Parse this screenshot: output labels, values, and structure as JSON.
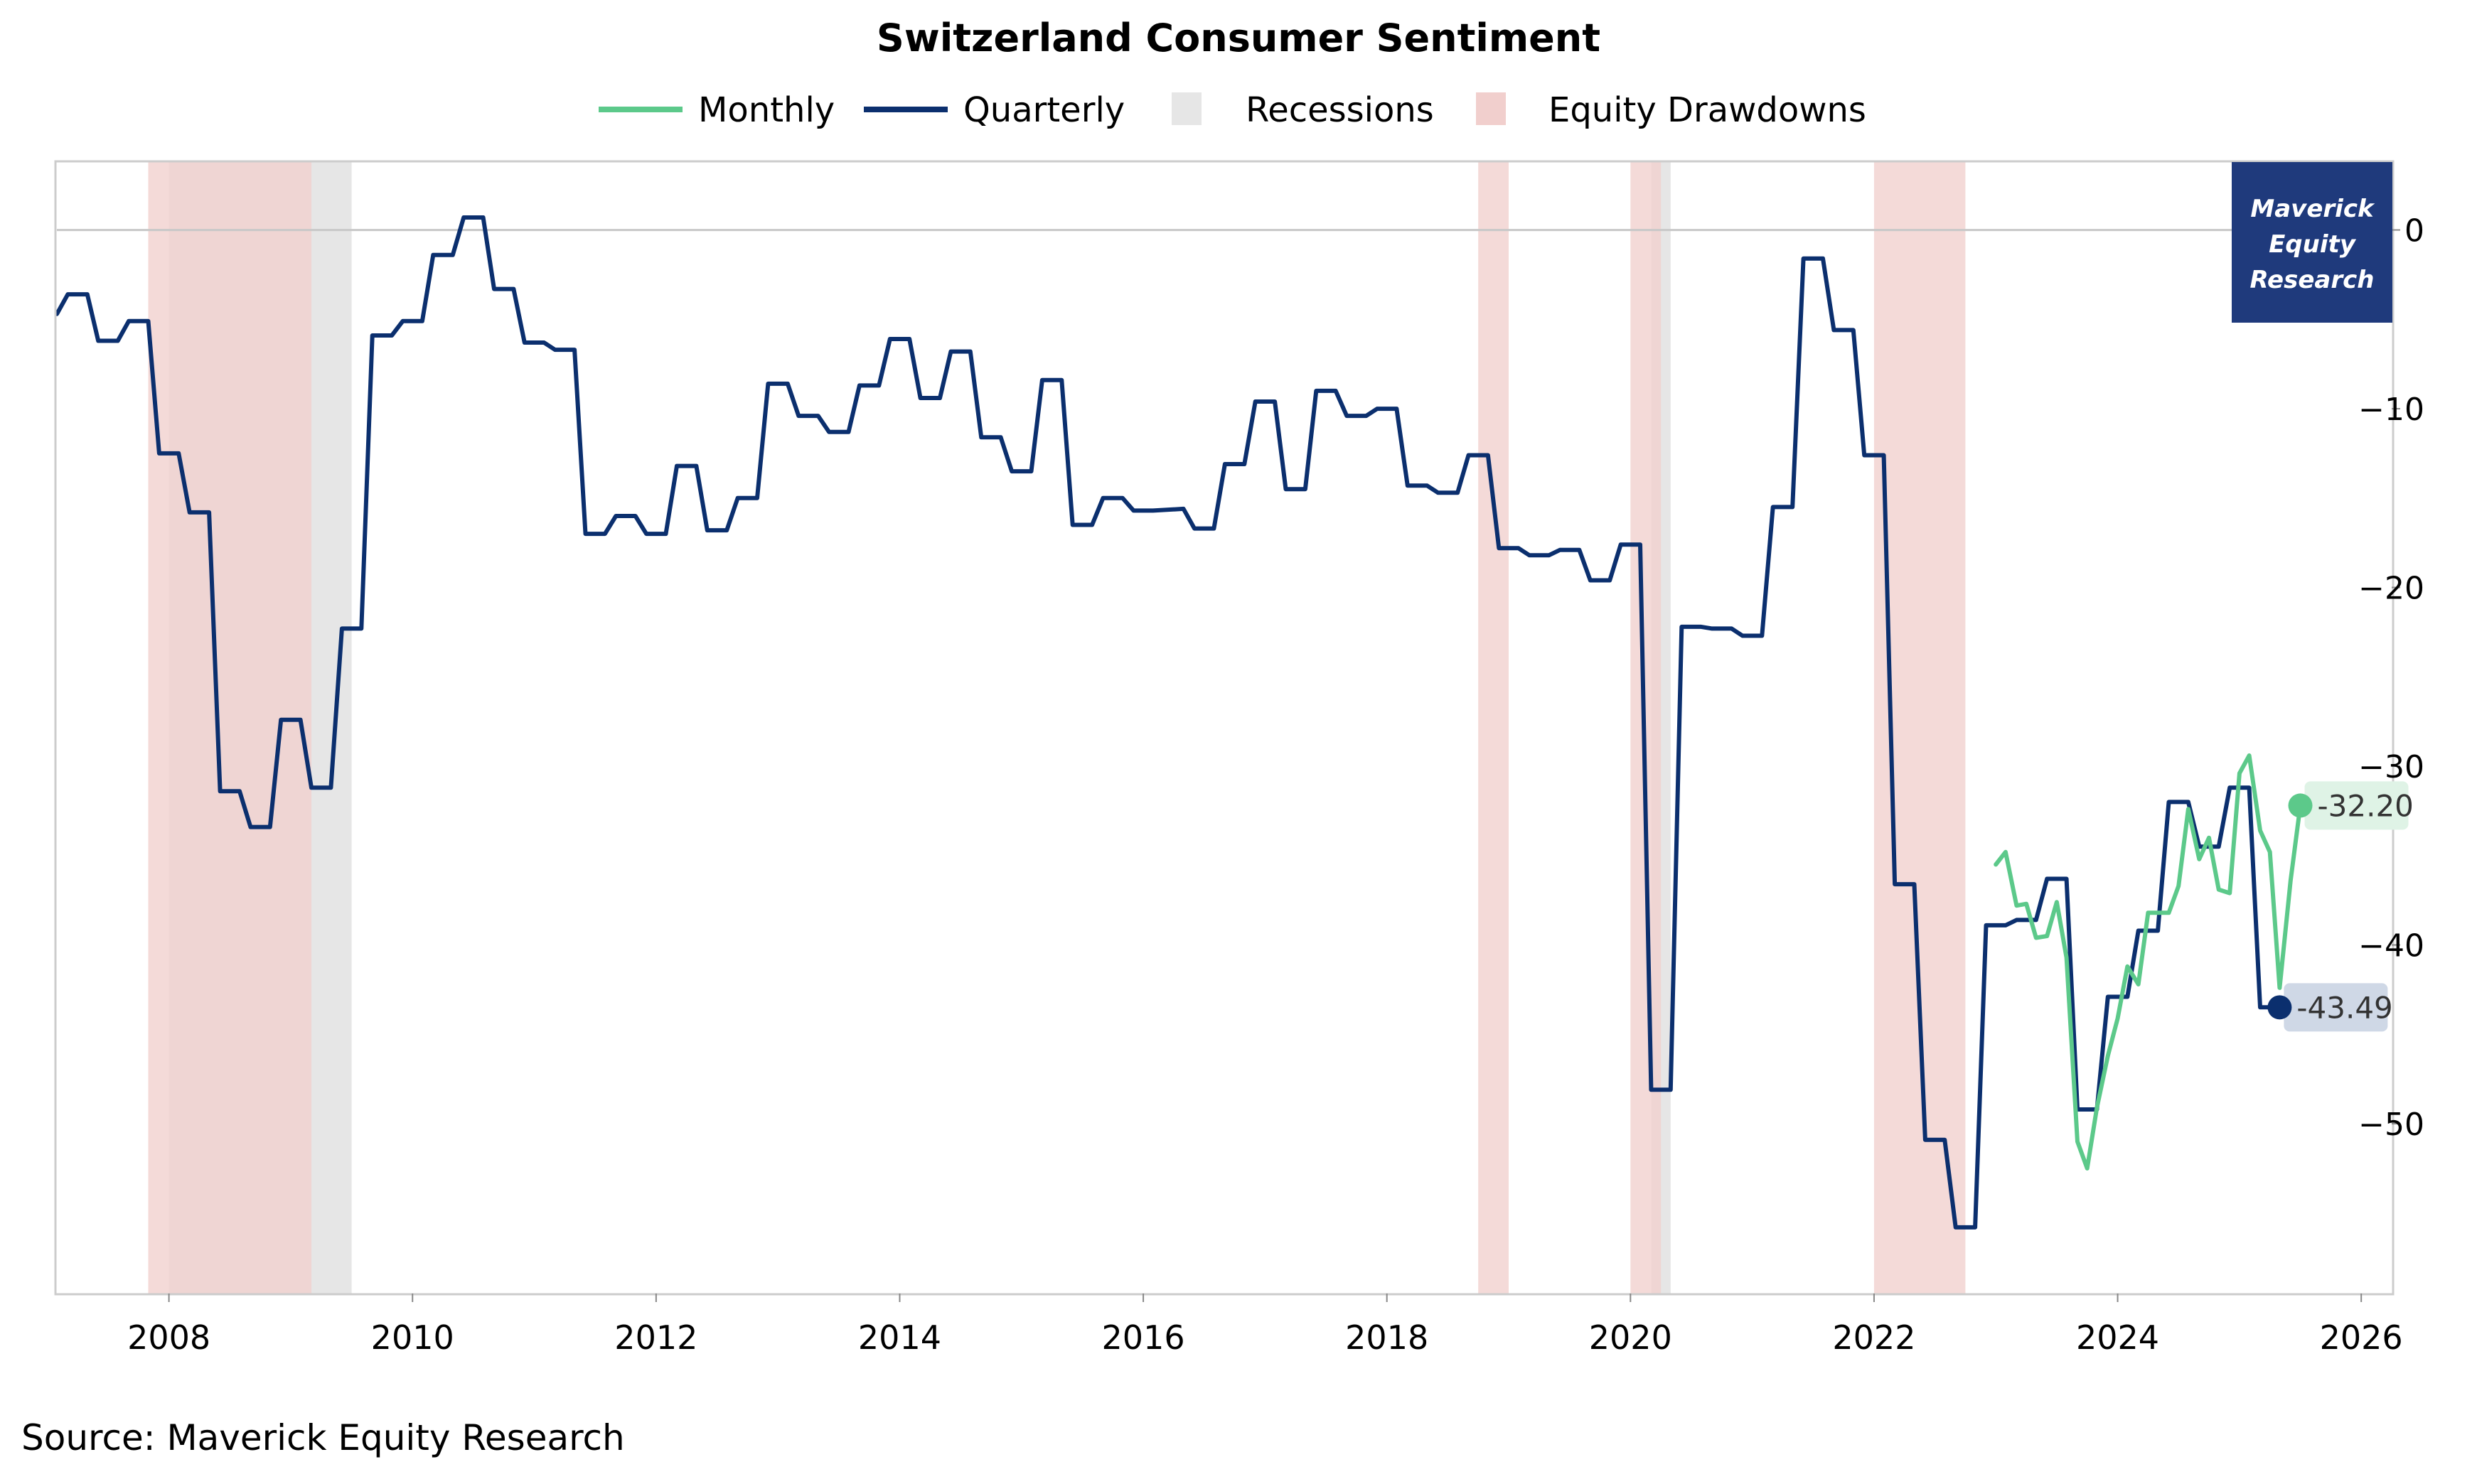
{
  "chart_data": {
    "type": "line",
    "title": "Switzerland Consumer Sentiment",
    "source": "Source: Maverick Equity Research",
    "watermark": "Maverick Equity Research",
    "watermark_lines": [
      "Maverick",
      "Equity",
      "Research"
    ],
    "xlabel": "",
    "ylabel": "",
    "xlim": [
      2007.08,
      2026.25
    ],
    "ylim": [
      -59.5,
      3.8
    ],
    "x_ticks": [
      2008,
      2010,
      2012,
      2014,
      2016,
      2018,
      2020,
      2022,
      2024,
      2026
    ],
    "x_tick_labels": [
      "2008",
      "2010",
      "2012",
      "2014",
      "2016",
      "2018",
      "2020",
      "2022",
      "2024",
      "2026"
    ],
    "y_ticks": [
      0,
      -10,
      -20,
      -30,
      -40,
      -50
    ],
    "y_tick_labels": [
      "0",
      "−10",
      "−20",
      "−30",
      "−40",
      "−50"
    ],
    "y_axis_side": "right",
    "reference_line_y": 0,
    "grid": false,
    "legend_position": "top-center",
    "legend": [
      {
        "label": "Monthly",
        "kind": "line",
        "color": "#5cc98a"
      },
      {
        "label": "Quarterly",
        "kind": "line",
        "color": "#0b2f6e"
      },
      {
        "label": "Recessions",
        "kind": "patch",
        "color": "#e6e6e6"
      },
      {
        "label": "Equity Drawdowns",
        "kind": "patch",
        "color": "#f1cfcd"
      }
    ],
    "recessions": [
      [
        2008.0,
        2009.5
      ],
      [
        2020.17,
        2020.33
      ]
    ],
    "equity_drawdowns": [
      [
        2007.83,
        2009.17
      ],
      [
        2018.75,
        2019.0
      ],
      [
        2020.0,
        2020.25
      ],
      [
        2022.0,
        2022.75
      ]
    ],
    "series": [
      {
        "name": "Quarterly",
        "color": "#0b2f6e",
        "last_value_label": "-43.49",
        "points": [
          [
            2007.08,
            -4.7
          ],
          [
            2007.17,
            -3.6
          ],
          [
            2007.33,
            -3.6
          ],
          [
            2007.42,
            -6.2
          ],
          [
            2007.58,
            -6.2
          ],
          [
            2007.67,
            -5.1
          ],
          [
            2007.83,
            -5.1
          ],
          [
            2007.92,
            -12.5
          ],
          [
            2008.08,
            -12.5
          ],
          [
            2008.17,
            -15.8
          ],
          [
            2008.33,
            -15.8
          ],
          [
            2008.42,
            -31.4
          ],
          [
            2008.58,
            -31.4
          ],
          [
            2008.67,
            -33.4
          ],
          [
            2008.83,
            -33.4
          ],
          [
            2008.92,
            -27.4
          ],
          [
            2009.08,
            -27.4
          ],
          [
            2009.17,
            -31.2
          ],
          [
            2009.33,
            -31.2
          ],
          [
            2009.42,
            -22.3
          ],
          [
            2009.58,
            -22.3
          ],
          [
            2009.67,
            -5.9
          ],
          [
            2009.83,
            -5.9
          ],
          [
            2009.92,
            -5.1
          ],
          [
            2010.08,
            -5.1
          ],
          [
            2010.17,
            -1.4
          ],
          [
            2010.33,
            -1.4
          ],
          [
            2010.42,
            0.7
          ],
          [
            2010.58,
            0.7
          ],
          [
            2010.67,
            -3.3
          ],
          [
            2010.83,
            -3.3
          ],
          [
            2010.92,
            -6.3
          ],
          [
            2011.08,
            -6.3
          ],
          [
            2011.17,
            -6.7
          ],
          [
            2011.33,
            -6.7
          ],
          [
            2011.42,
            -17.0
          ],
          [
            2011.58,
            -17.0
          ],
          [
            2011.67,
            -16.0
          ],
          [
            2011.83,
            -16.0
          ],
          [
            2011.92,
            -17.0
          ],
          [
            2012.08,
            -17.0
          ],
          [
            2012.17,
            -13.2
          ],
          [
            2012.33,
            -13.2
          ],
          [
            2012.42,
            -16.8
          ],
          [
            2012.58,
            -16.8
          ],
          [
            2012.67,
            -15.0
          ],
          [
            2012.83,
            -15.0
          ],
          [
            2012.92,
            -8.6
          ],
          [
            2013.08,
            -8.6
          ],
          [
            2013.17,
            -10.4
          ],
          [
            2013.33,
            -10.4
          ],
          [
            2013.42,
            -11.3
          ],
          [
            2013.58,
            -11.3
          ],
          [
            2013.67,
            -8.7
          ],
          [
            2013.83,
            -8.7
          ],
          [
            2013.92,
            -6.1
          ],
          [
            2014.08,
            -6.1
          ],
          [
            2014.17,
            -9.4
          ],
          [
            2014.33,
            -9.4
          ],
          [
            2014.42,
            -6.8
          ],
          [
            2014.58,
            -6.8
          ],
          [
            2014.67,
            -11.6
          ],
          [
            2014.83,
            -11.6
          ],
          [
            2014.92,
            -13.5
          ],
          [
            2015.08,
            -13.5
          ],
          [
            2015.17,
            -8.4
          ],
          [
            2015.33,
            -8.4
          ],
          [
            2015.42,
            -16.5
          ],
          [
            2015.58,
            -16.5
          ],
          [
            2015.67,
            -15.0
          ],
          [
            2015.83,
            -15.0
          ],
          [
            2015.92,
            -15.7
          ],
          [
            2016.08,
            -15.7
          ],
          [
            2016.33,
            -15.6
          ],
          [
            2016.42,
            -16.7
          ],
          [
            2016.58,
            -16.7
          ],
          [
            2016.67,
            -13.1
          ],
          [
            2016.83,
            -13.1
          ],
          [
            2016.92,
            -9.6
          ],
          [
            2017.08,
            -9.6
          ],
          [
            2017.17,
            -14.5
          ],
          [
            2017.33,
            -14.5
          ],
          [
            2017.42,
            -9.0
          ],
          [
            2017.58,
            -9.0
          ],
          [
            2017.67,
            -10.4
          ],
          [
            2017.83,
            -10.4
          ],
          [
            2017.92,
            -10.0
          ],
          [
            2018.08,
            -10.0
          ],
          [
            2018.17,
            -14.3
          ],
          [
            2018.33,
            -14.3
          ],
          [
            2018.42,
            -14.7
          ],
          [
            2018.58,
            -14.7
          ],
          [
            2018.67,
            -12.6
          ],
          [
            2018.83,
            -12.6
          ],
          [
            2018.92,
            -17.8
          ],
          [
            2019.08,
            -17.8
          ],
          [
            2019.17,
            -18.2
          ],
          [
            2019.33,
            -18.2
          ],
          [
            2019.42,
            -17.9
          ],
          [
            2019.58,
            -17.9
          ],
          [
            2019.67,
            -19.6
          ],
          [
            2019.83,
            -19.6
          ],
          [
            2019.92,
            -17.6
          ],
          [
            2020.08,
            -17.6
          ],
          [
            2020.17,
            -48.1
          ],
          [
            2020.33,
            -48.1
          ],
          [
            2020.42,
            -22.2
          ],
          [
            2020.58,
            -22.2
          ],
          [
            2020.67,
            -22.3
          ],
          [
            2020.83,
            -22.3
          ],
          [
            2020.92,
            -22.7
          ],
          [
            2021.08,
            -22.7
          ],
          [
            2021.17,
            -15.5
          ],
          [
            2021.33,
            -15.5
          ],
          [
            2021.42,
            -1.6
          ],
          [
            2021.58,
            -1.6
          ],
          [
            2021.67,
            -5.6
          ],
          [
            2021.83,
            -5.6
          ],
          [
            2021.92,
            -12.6
          ],
          [
            2022.08,
            -12.6
          ],
          [
            2022.17,
            -36.6
          ],
          [
            2022.33,
            -36.6
          ],
          [
            2022.42,
            -50.9
          ],
          [
            2022.58,
            -50.9
          ],
          [
            2022.67,
            -55.8
          ],
          [
            2022.83,
            -55.8
          ],
          [
            2022.92,
            -38.9
          ],
          [
            2023.08,
            -38.9
          ],
          [
            2023.17,
            -38.6
          ],
          [
            2023.33,
            -38.6
          ],
          [
            2023.42,
            -36.3
          ],
          [
            2023.58,
            -36.3
          ],
          [
            2023.67,
            -49.2
          ],
          [
            2023.83,
            -49.2
          ],
          [
            2023.92,
            -42.9
          ],
          [
            2024.08,
            -42.9
          ],
          [
            2024.17,
            -39.2
          ],
          [
            2024.33,
            -39.2
          ],
          [
            2024.42,
            -32.0
          ],
          [
            2024.58,
            -32.0
          ],
          [
            2024.67,
            -34.5
          ],
          [
            2024.83,
            -34.5
          ],
          [
            2024.92,
            -31.2
          ],
          [
            2025.08,
            -31.2
          ],
          [
            2025.17,
            -43.49
          ],
          [
            2025.33,
            -43.49
          ]
        ]
      },
      {
        "name": "Monthly",
        "color": "#5cc98a",
        "last_value_label": "-32.20",
        "points": [
          [
            2023.0,
            -35.5
          ],
          [
            2023.08,
            -34.8
          ],
          [
            2023.17,
            -37.8
          ],
          [
            2023.25,
            -37.7
          ],
          [
            2023.33,
            -39.6
          ],
          [
            2023.42,
            -39.5
          ],
          [
            2023.5,
            -37.6
          ],
          [
            2023.58,
            -40.7
          ],
          [
            2023.67,
            -51.0
          ],
          [
            2023.75,
            -52.5
          ],
          [
            2023.83,
            -49.1
          ],
          [
            2023.92,
            -46.2
          ],
          [
            2024.0,
            -44.1
          ],
          [
            2024.08,
            -41.2
          ],
          [
            2024.17,
            -42.2
          ],
          [
            2024.25,
            -38.2
          ],
          [
            2024.33,
            -38.2
          ],
          [
            2024.42,
            -38.2
          ],
          [
            2024.5,
            -36.7
          ],
          [
            2024.58,
            -32.4
          ],
          [
            2024.67,
            -35.2
          ],
          [
            2024.75,
            -34.0
          ],
          [
            2024.83,
            -36.9
          ],
          [
            2024.92,
            -37.1
          ],
          [
            2025.0,
            -30.4
          ],
          [
            2025.08,
            -29.4
          ],
          [
            2025.17,
            -33.6
          ],
          [
            2025.25,
            -34.8
          ],
          [
            2025.33,
            -42.4
          ],
          [
            2025.42,
            -36.4
          ],
          [
            2025.5,
            -32.2
          ]
        ]
      }
    ]
  }
}
